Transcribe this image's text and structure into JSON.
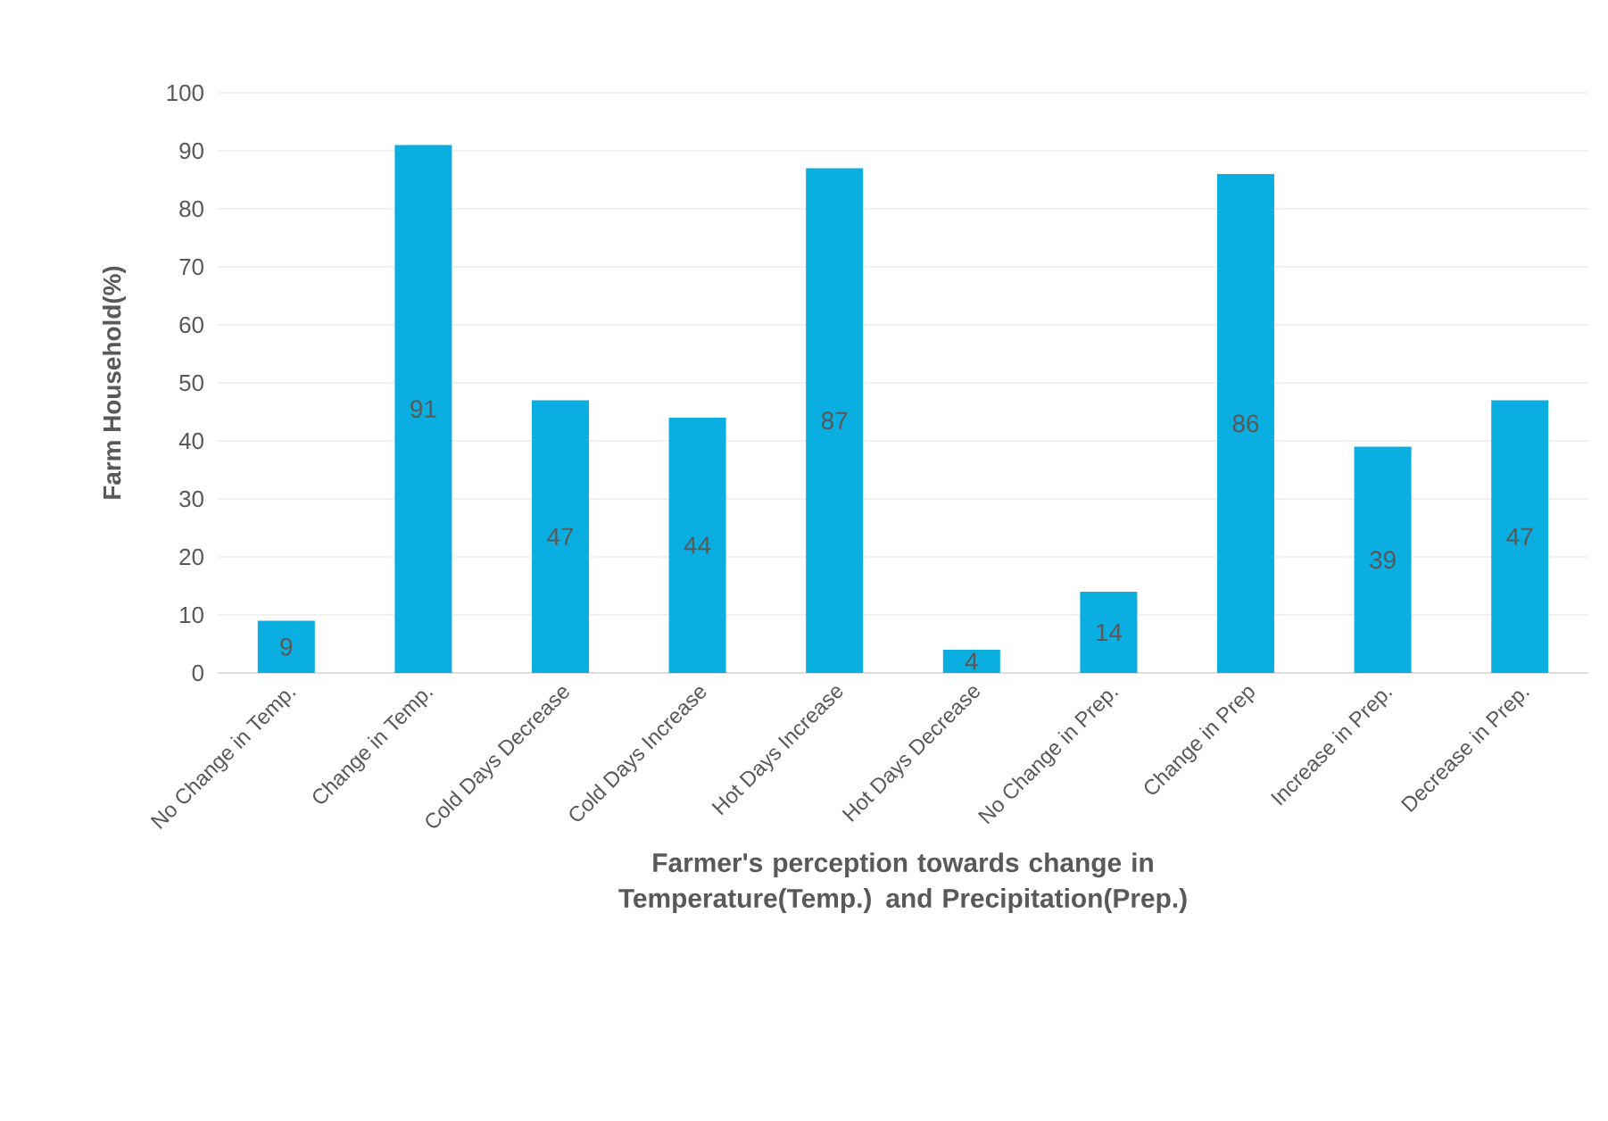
{
  "chart_data": {
    "type": "bar",
    "xlabel": "Farmer's perception towards change in Temperature(Temp.) and Precipitation(Prep.)",
    "ylabel": "Farm Household(%)",
    "categories": [
      "No Change in Temp.",
      "Change in Temp.",
      "Cold Days Decrease",
      "Cold Days Increase",
      "Hot Days Increase",
      "Hot Days Decrease",
      "No Change in Prep.",
      "Change in Prep",
      "Increase in Prep.",
      "Decrease in Prep."
    ],
    "values": [
      9,
      91,
      47,
      44,
      87,
      4,
      14,
      86,
      39,
      47
    ],
    "color": "#0aaee0",
    "ylim": [
      0,
      100
    ],
    "yticks": [
      0,
      10,
      20,
      30,
      40,
      50,
      60,
      70,
      80,
      90,
      100
    ],
    "grid": "y",
    "data_labels": true
  }
}
